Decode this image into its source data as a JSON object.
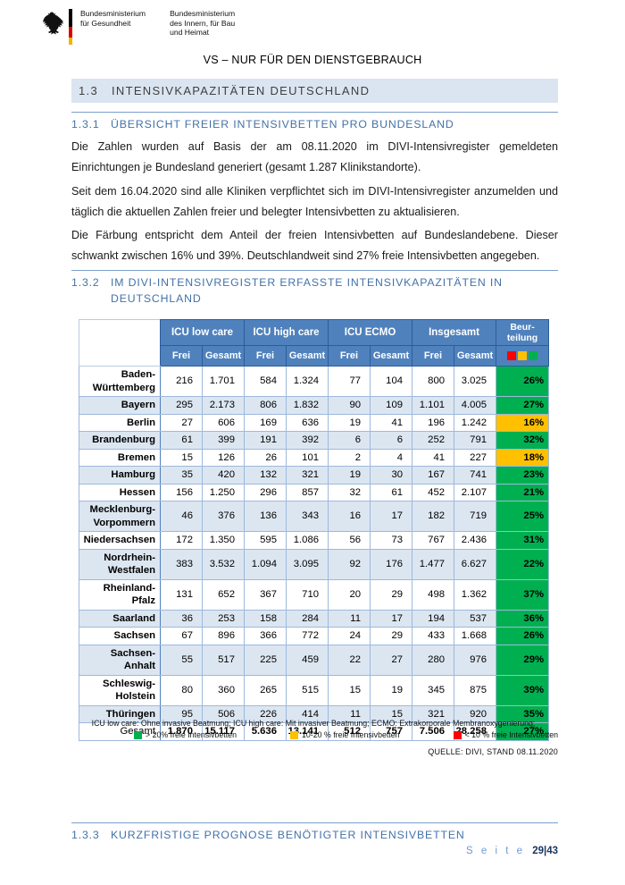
{
  "colors": {
    "header_blue": "#4F81BD",
    "row_alt": "#DCE6F1",
    "green": "#00B050",
    "orange": "#FFC000",
    "red": "#FF0000"
  },
  "header": {
    "ministry_health": "Bundesministerium\nfür Gesundheit",
    "ministry_interior": "Bundesministerium\ndes Innern, für Bau\nund Heimat",
    "classification": "VS – NUR FÜR DEN DIENSTGEBRAUCH"
  },
  "section_13": {
    "number": "1.3",
    "title": "INTENSIVKAPAZITÄTEN DEUTSCHLAND"
  },
  "section_131": {
    "number": "1.3.1",
    "title": "ÜBERSICHT FREIER INTENSIVBETTEN PRO BUNDESLAND"
  },
  "paragraphs": {
    "p1": "Die Zahlen wurden auf Basis der am 08.11.2020 im DIVI-Intensivregister gemeldeten Einrichtungen je Bundesland generiert (gesamt 1.287 Klinikstandorte).",
    "p2": "Seit dem 16.04.2020 sind alle Kliniken verpflichtet sich im DIVI-Intensivregister anzumelden und täglich die aktuellen Zahlen freier und belegter Intensivbetten zu aktualisieren.",
    "p3": "Die Färbung entspricht dem Anteil der freien Intensivbetten auf Bundeslandebene. Dieser schwankt zwischen 16% und 39%. Deutschlandweit sind 27% freie Intensivbetten angegeben."
  },
  "section_132": {
    "number": "1.3.2",
    "title": "IM DIVI-INTENSIVREGISTER ERFASSTE INTENSIVKAPAZITÄTEN IN\nDEUTSCHLAND"
  },
  "table": {
    "col_groups": [
      "ICU low care",
      "ICU high care",
      "ICU ECMO",
      "Insgesamt"
    ],
    "sub_headers": [
      "Frei",
      "Gesamt"
    ],
    "assessment_header": "Beur-\nteilung",
    "assessment_scale": [
      "red",
      "orange",
      "green"
    ],
    "rows": [
      {
        "land": "Baden-\nWürttemberg",
        "values": [
          "216",
          "1.701",
          "584",
          "1.324",
          "77",
          "104",
          "800",
          "3.025"
        ],
        "assessment": "26%",
        "level": "green"
      },
      {
        "land": "Bayern",
        "values": [
          "295",
          "2.173",
          "806",
          "1.832",
          "90",
          "109",
          "1.101",
          "4.005"
        ],
        "assessment": "27%",
        "level": "green"
      },
      {
        "land": "Berlin",
        "values": [
          "27",
          "606",
          "169",
          "636",
          "19",
          "41",
          "196",
          "1.242"
        ],
        "assessment": "16%",
        "level": "orange"
      },
      {
        "land": "Brandenburg",
        "values": [
          "61",
          "399",
          "191",
          "392",
          "6",
          "6",
          "252",
          "791"
        ],
        "assessment": "32%",
        "level": "green"
      },
      {
        "land": "Bremen",
        "values": [
          "15",
          "126",
          "26",
          "101",
          "2",
          "4",
          "41",
          "227"
        ],
        "assessment": "18%",
        "level": "orange"
      },
      {
        "land": "Hamburg",
        "values": [
          "35",
          "420",
          "132",
          "321",
          "19",
          "30",
          "167",
          "741"
        ],
        "assessment": "23%",
        "level": "green"
      },
      {
        "land": "Hessen",
        "values": [
          "156",
          "1.250",
          "296",
          "857",
          "32",
          "61",
          "452",
          "2.107"
        ],
        "assessment": "21%",
        "level": "green"
      },
      {
        "land": "Mecklenburg-\nVorpommern",
        "values": [
          "46",
          "376",
          "136",
          "343",
          "16",
          "17",
          "182",
          "719"
        ],
        "assessment": "25%",
        "level": "green"
      },
      {
        "land": "Niedersachsen",
        "values": [
          "172",
          "1.350",
          "595",
          "1.086",
          "56",
          "73",
          "767",
          "2.436"
        ],
        "assessment": "31%",
        "level": "green"
      },
      {
        "land": "Nordrhein-\nWestfalen",
        "values": [
          "383",
          "3.532",
          "1.094",
          "3.095",
          "92",
          "176",
          "1.477",
          "6.627"
        ],
        "assessment": "22%",
        "level": "green"
      },
      {
        "land": "Rheinland-\nPfalz",
        "values": [
          "131",
          "652",
          "367",
          "710",
          "20",
          "29",
          "498",
          "1.362"
        ],
        "assessment": "37%",
        "level": "green"
      },
      {
        "land": "Saarland",
        "values": [
          "36",
          "253",
          "158",
          "284",
          "11",
          "17",
          "194",
          "537"
        ],
        "assessment": "36%",
        "level": "green"
      },
      {
        "land": "Sachsen",
        "values": [
          "67",
          "896",
          "366",
          "772",
          "24",
          "29",
          "433",
          "1.668"
        ],
        "assessment": "26%",
        "level": "green"
      },
      {
        "land": "Sachsen-\nAnhalt",
        "values": [
          "55",
          "517",
          "225",
          "459",
          "22",
          "27",
          "280",
          "976"
        ],
        "assessment": "29%",
        "level": "green"
      },
      {
        "land": "Schleswig-\nHolstein",
        "values": [
          "80",
          "360",
          "265",
          "515",
          "15",
          "19",
          "345",
          "875"
        ],
        "assessment": "39%",
        "level": "green"
      },
      {
        "land": "Thüringen",
        "values": [
          "95",
          "506",
          "226",
          "414",
          "11",
          "15",
          "321",
          "920"
        ],
        "assessment": "35%",
        "level": "green"
      }
    ],
    "total": {
      "land": "Gesamt",
      "values": [
        "1.870",
        "15.117",
        "5.636",
        "13.141",
        "512",
        "757",
        "7.506",
        "28.258"
      ],
      "assessment": "27%",
      "level": "green"
    },
    "footnote": "ICU low care: Ohne invasive Beatmung; ICU high care: Mit invasiver Beatmung; ECMO: Extrakorporale Membranoxygenierung;",
    "legend": [
      {
        "level": "green",
        "label": "> 20% freie Intensivbetten"
      },
      {
        "level": "orange",
        "label": "10-20 % freie Intensivbetten"
      },
      {
        "level": "red",
        "label": "< 10 % freie Intensivbetten"
      }
    ],
    "source": "QUELLE: DIVI, STAND 08.11.2020"
  },
  "section_133": {
    "number": "1.3.3",
    "title": "KURZFRISTIGE PROGNOSE BENÖTIGTER INTENSIVBETTEN"
  },
  "footer": {
    "label": "S e i t e",
    "page": "29|43"
  }
}
